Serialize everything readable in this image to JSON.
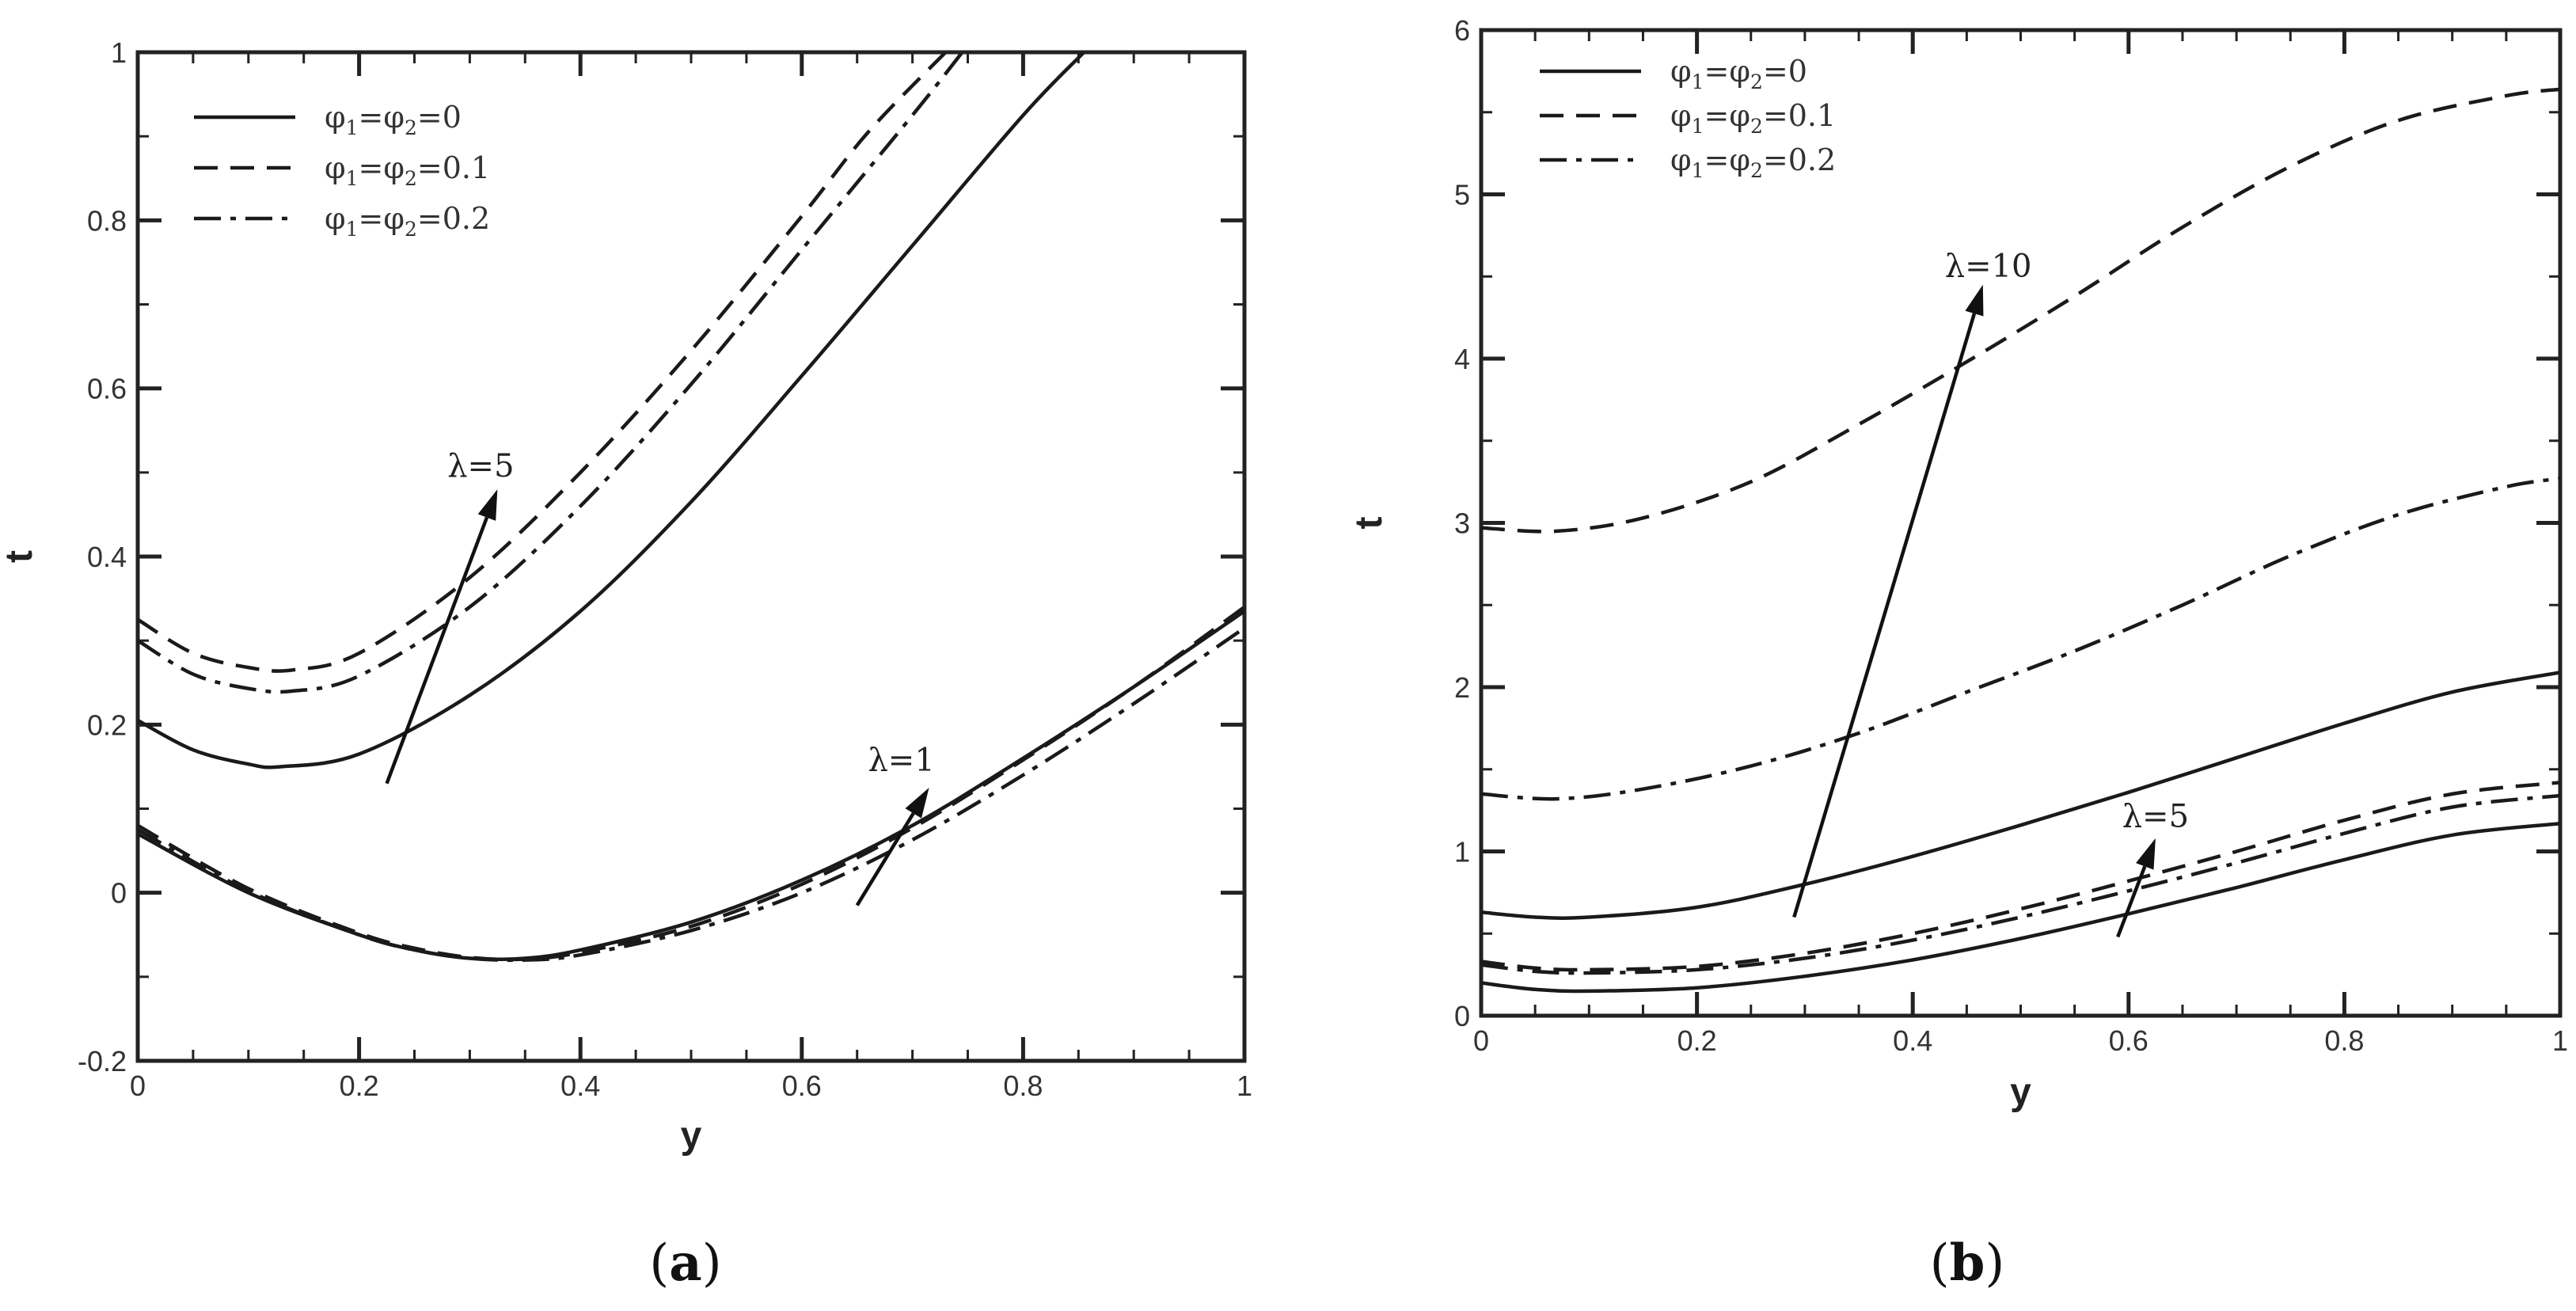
{
  "figure": {
    "panel_labels": [
      {
        "open": "(",
        "letter": "a",
        "close": ")"
      },
      {
        "open": "(",
        "letter": "b",
        "close": ")"
      }
    ]
  },
  "chart_data": [
    {
      "type": "line",
      "panel": "a",
      "title": "",
      "xlabel": "y",
      "ylabel": "t",
      "xlim": [
        0,
        1
      ],
      "ylim": [
        -0.2,
        1
      ],
      "xticks": [
        0,
        0.2,
        0.4,
        0.6,
        0.8,
        1
      ],
      "xtick_labels": [
        "0",
        "0.2",
        "0.4",
        "0.6",
        "0.8",
        "1"
      ],
      "yticks": [
        -0.2,
        0,
        0.2,
        0.4,
        0.6,
        0.8,
        1
      ],
      "ytick_labels": [
        "-0.2",
        "0",
        "0.2",
        "0.4",
        "0.6",
        "0.8",
        "1"
      ],
      "legend": {
        "position": "top-left",
        "entries": [
          {
            "style": "solid",
            "phi": "φ",
            "sub1": "1",
            "eq": "=",
            "sub2": "2",
            "value": "=0"
          },
          {
            "style": "dashed",
            "phi": "φ",
            "sub1": "1",
            "eq": "=",
            "sub2": "2",
            "value": "=0.1"
          },
          {
            "style": "dashdot",
            "phi": "φ",
            "sub1": "1",
            "eq": "=",
            "sub2": "2",
            "value": "=0.2"
          }
        ]
      },
      "annotations": [
        {
          "text": "λ=5",
          "from": [
            0.225,
            0.13
          ],
          "to": [
            0.325,
            0.48
          ],
          "label_at": [
            0.31,
            0.495
          ]
        },
        {
          "text": "λ=1",
          "from": [
            0.65,
            -0.015
          ],
          "to": [
            0.715,
            0.125
          ],
          "label_at": [
            0.69,
            0.145
          ]
        }
      ],
      "series": [
        {
          "name": "λ=5, φ1=φ2=0",
          "style": "solid",
          "x": [
            0,
            0.05,
            0.1,
            0.13,
            0.2,
            0.3,
            0.4,
            0.5,
            0.6,
            0.7,
            0.8,
            0.855
          ],
          "y": [
            0.205,
            0.17,
            0.153,
            0.15,
            0.165,
            0.235,
            0.335,
            0.465,
            0.615,
            0.77,
            0.925,
            1.0
          ]
        },
        {
          "name": "λ=5, φ1=φ2=0.1",
          "style": "dashed",
          "x": [
            0,
            0.05,
            0.1,
            0.14,
            0.2,
            0.3,
            0.4,
            0.5,
            0.6,
            0.66,
            0.73
          ],
          "y": [
            0.325,
            0.285,
            0.268,
            0.265,
            0.285,
            0.375,
            0.5,
            0.645,
            0.805,
            0.905,
            1.0
          ]
        },
        {
          "name": "λ=5, φ1=φ2=0.2",
          "style": "dashdot",
          "x": [
            0,
            0.05,
            0.1,
            0.14,
            0.2,
            0.3,
            0.4,
            0.5,
            0.6,
            0.7,
            0.745
          ],
          "y": [
            0.3,
            0.26,
            0.243,
            0.24,
            0.258,
            0.34,
            0.46,
            0.605,
            0.765,
            0.925,
            1.0
          ]
        },
        {
          "name": "λ=1, φ1=φ2=0",
          "style": "solid",
          "x": [
            0,
            0.1,
            0.2,
            0.25,
            0.3,
            0.35,
            0.4,
            0.5,
            0.6,
            0.7,
            0.8,
            0.9,
            1.0
          ],
          "y": [
            0.07,
            0.0,
            -0.05,
            -0.068,
            -0.078,
            -0.078,
            -0.068,
            -0.035,
            0.015,
            0.08,
            0.16,
            0.245,
            0.335
          ]
        },
        {
          "name": "λ=1, φ1=φ2=0.1",
          "style": "dashed",
          "x": [
            0,
            0.1,
            0.2,
            0.25,
            0.3,
            0.35,
            0.4,
            0.5,
            0.6,
            0.7,
            0.8,
            0.9,
            1.0
          ],
          "y": [
            0.08,
            0.005,
            -0.048,
            -0.066,
            -0.077,
            -0.079,
            -0.071,
            -0.04,
            0.01,
            0.077,
            0.158,
            0.245,
            0.34
          ]
        },
        {
          "name": "λ=1, φ1=φ2=0.2",
          "style": "dashdot",
          "x": [
            0,
            0.1,
            0.2,
            0.25,
            0.3,
            0.35,
            0.4,
            0.5,
            0.6,
            0.7,
            0.8,
            0.9,
            1.0
          ],
          "y": [
            0.075,
            0.002,
            -0.05,
            -0.068,
            -0.078,
            -0.08,
            -0.074,
            -0.045,
            0.0,
            0.063,
            0.14,
            0.225,
            0.315
          ]
        }
      ]
    },
    {
      "type": "line",
      "panel": "b",
      "title": "",
      "xlabel": "y",
      "ylabel": "t",
      "xlim": [
        0,
        1
      ],
      "ylim": [
        0,
        6
      ],
      "xticks": [
        0,
        0.2,
        0.4,
        0.6,
        0.8,
        1
      ],
      "xtick_labels": [
        "0",
        "0.2",
        "0.4",
        "0.6",
        "0.8",
        "1"
      ],
      "yticks": [
        0,
        1,
        2,
        3,
        4,
        5,
        6
      ],
      "ytick_labels": [
        "0",
        "1",
        "2",
        "3",
        "4",
        "5",
        "6"
      ],
      "legend": {
        "position": "top-left",
        "entries": [
          {
            "style": "solid",
            "phi": "φ",
            "sub1": "1",
            "eq": "=",
            "sub2": "2",
            "value": "=0"
          },
          {
            "style": "dashed",
            "phi": "φ",
            "sub1": "1",
            "eq": "=",
            "sub2": "2",
            "value": "=0.1"
          },
          {
            "style": "dashdot",
            "phi": "φ",
            "sub1": "1",
            "eq": "=",
            "sub2": "2",
            "value": "=0.2"
          }
        ]
      },
      "annotations": [
        {
          "text": "λ=10",
          "from": [
            0.29,
            0.6
          ],
          "to": [
            0.465,
            4.45
          ],
          "label_at": [
            0.47,
            4.5
          ]
        },
        {
          "text": "λ=5",
          "from": [
            0.59,
            0.48
          ],
          "to": [
            0.625,
            1.08
          ],
          "label_at": [
            0.625,
            1.15
          ]
        }
      ],
      "series": [
        {
          "name": "λ=10, φ1=φ2=0.1",
          "style": "dashed",
          "x": [
            0,
            0.07,
            0.15,
            0.25,
            0.35,
            0.45,
            0.55,
            0.65,
            0.75,
            0.85,
            0.95,
            1.0
          ],
          "y": [
            2.97,
            2.95,
            3.03,
            3.25,
            3.6,
            3.98,
            4.38,
            4.8,
            5.17,
            5.45,
            5.6,
            5.64
          ]
        },
        {
          "name": "λ=10, φ1=φ2=0.2",
          "style": "dashdot",
          "x": [
            0,
            0.07,
            0.15,
            0.25,
            0.35,
            0.45,
            0.55,
            0.65,
            0.75,
            0.85,
            0.95,
            1.0
          ],
          "y": [
            1.35,
            1.32,
            1.38,
            1.52,
            1.72,
            1.97,
            2.22,
            2.5,
            2.8,
            3.05,
            3.22,
            3.27
          ]
        },
        {
          "name": "λ=10, φ1=φ2=0",
          "style": "solid",
          "x": [
            0,
            0.05,
            0.1,
            0.2,
            0.3,
            0.4,
            0.5,
            0.6,
            0.7,
            0.8,
            0.9,
            1.0
          ],
          "y": [
            0.63,
            0.6,
            0.6,
            0.66,
            0.8,
            0.97,
            1.16,
            1.36,
            1.57,
            1.78,
            1.97,
            2.09
          ]
        },
        {
          "name": "λ=5, φ1=φ2=0.1",
          "style": "dashed",
          "x": [
            0,
            0.05,
            0.1,
            0.2,
            0.3,
            0.4,
            0.5,
            0.6,
            0.7,
            0.8,
            0.9,
            1.0
          ],
          "y": [
            0.33,
            0.29,
            0.28,
            0.3,
            0.38,
            0.5,
            0.65,
            0.82,
            1.0,
            1.19,
            1.35,
            1.42
          ]
        },
        {
          "name": "λ=5, φ1=φ2=0.2",
          "style": "dashdot",
          "x": [
            0,
            0.05,
            0.1,
            0.2,
            0.3,
            0.4,
            0.5,
            0.6,
            0.7,
            0.8,
            0.9,
            1.0
          ],
          "y": [
            0.31,
            0.27,
            0.26,
            0.28,
            0.35,
            0.46,
            0.6,
            0.76,
            0.93,
            1.11,
            1.27,
            1.34
          ]
        },
        {
          "name": "λ=5, φ1=φ2=0",
          "style": "solid",
          "x": [
            0,
            0.05,
            0.1,
            0.2,
            0.3,
            0.4,
            0.5,
            0.6,
            0.7,
            0.8,
            0.9,
            1.0
          ],
          "y": [
            0.2,
            0.16,
            0.15,
            0.17,
            0.24,
            0.34,
            0.47,
            0.62,
            0.78,
            0.95,
            1.1,
            1.17
          ]
        }
      ]
    }
  ]
}
